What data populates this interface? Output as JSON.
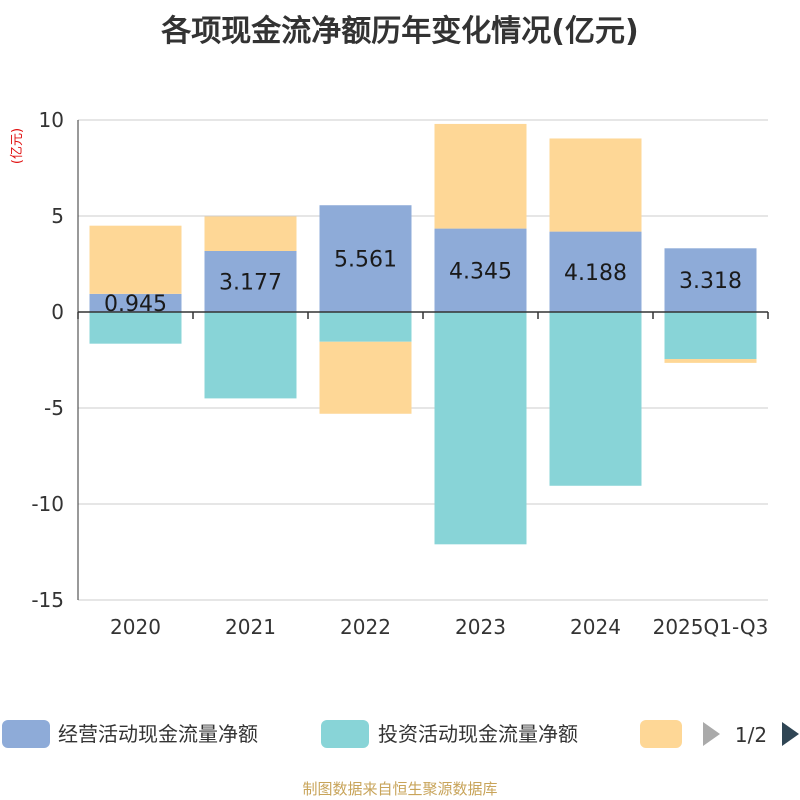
{
  "title": "各项现金流净额历年变化情况(亿元)",
  "source": "制图数据来自恒生聚源数据库",
  "chart_data": {
    "type": "bar",
    "stacked": true,
    "ylabel": "(亿元)",
    "ylim": [
      -15,
      10
    ],
    "yticks": [
      10,
      5,
      0,
      -5,
      -10,
      -15
    ],
    "grid": true,
    "categories": [
      "2020",
      "2021",
      "2022",
      "2023",
      "2024",
      "2025Q1-Q3"
    ],
    "series": [
      {
        "name": "经营活动现金流量净额",
        "color": "#8eabd8",
        "values": [
          0.945,
          3.177,
          5.561,
          4.345,
          4.188,
          3.318
        ],
        "show_labels": true
      },
      {
        "name": "投资活动现金流量净额",
        "color": "#88d4d7",
        "values": [
          -1.65,
          -4.5,
          -1.55,
          -12.1,
          -9.05,
          -2.45
        ],
        "show_labels": false
      },
      {
        "name": "",
        "color": "#fed796",
        "values": [
          3.55,
          1.8,
          -3.75,
          5.45,
          4.85,
          -0.2
        ],
        "show_labels": false
      }
    ],
    "legend": {
      "placement": "bottom",
      "page": "1/2"
    }
  }
}
